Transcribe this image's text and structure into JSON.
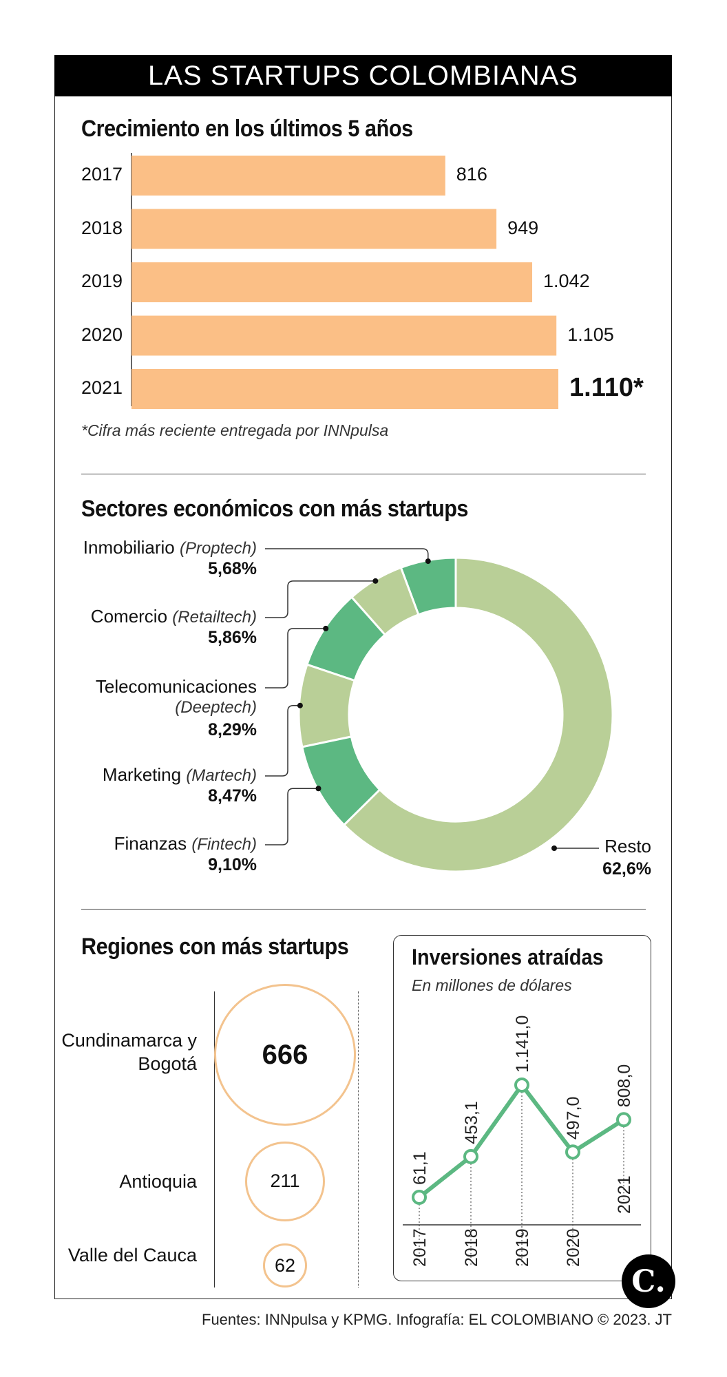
{
  "header": {
    "title": "LAS STARTUPS COLOMBIANAS"
  },
  "growth": {
    "title": "Crecimiento en los últimos 5 años",
    "note": "*Cifra más reciente entregada por INNpulsa"
  },
  "sectors": {
    "title": "Sectores económicos con más startups"
  },
  "regions": {
    "title": "Regiones con más startups"
  },
  "investments": {
    "title": "Inversiones atraídas",
    "subtitle": "En millones de dólares"
  },
  "footer": {
    "source": "Fuentes: INNpulsa y KPMG. Infografía: EL COLOMBIANO © 2023. JT",
    "logo": "C."
  },
  "colors": {
    "bar": "#fbbf86",
    "donut_dark": "#5cb882",
    "donut_light": "#b9cf97",
    "bubble": "#f3c38e",
    "line": "#5cb882"
  },
  "chart_data": [
    {
      "type": "bar",
      "orientation": "horizontal",
      "title": "Crecimiento en los últimos 5 años",
      "categories": [
        "2017",
        "2018",
        "2019",
        "2020",
        "2021"
      ],
      "values": [
        816,
        949,
        1042,
        1105,
        1110
      ],
      "value_labels": [
        "816",
        "949",
        "1.042",
        "1.105",
        "1.110*"
      ]
    },
    {
      "type": "pie",
      "variant": "donut",
      "title": "Sectores económicos con más startups",
      "slices": [
        {
          "name": "Inmobiliario",
          "tag": "(Proptech)",
          "value": 5.68,
          "label": "5,68%"
        },
        {
          "name": "Comercio",
          "tag": "(Retailtech)",
          "value": 5.86,
          "label": "5,86%"
        },
        {
          "name": "Telecomunicaciones",
          "tag": "(Deeptech)",
          "value": 8.29,
          "label": "8,29%"
        },
        {
          "name": "Marketing",
          "tag": "(Martech)",
          "value": 8.47,
          "label": "8,47%"
        },
        {
          "name": "Finanzas",
          "tag": "(Fintech)",
          "value": 9.1,
          "label": "9,10%"
        },
        {
          "name": "Resto",
          "tag": "",
          "value": 62.6,
          "label": "62,6%"
        }
      ]
    },
    {
      "type": "scatter",
      "variant": "bubble",
      "title": "Regiones con más startups",
      "items": [
        {
          "name": "Cundinamarca y Bogotá",
          "value": 666,
          "label": "666"
        },
        {
          "name": "Antioquia",
          "value": 211,
          "label": "211"
        },
        {
          "name": "Valle del Cauca",
          "value": 62,
          "label": "62"
        }
      ]
    },
    {
      "type": "line",
      "title": "Inversiones atraídas",
      "subtitle": "En millones de dólares",
      "x": [
        "2017",
        "2018",
        "2019",
        "2020",
        "2021"
      ],
      "values": [
        61.1,
        453.1,
        1141.0,
        497.0,
        808.0
      ],
      "value_labels": [
        "61,1",
        "453,1",
        "1.141,0",
        "497,0",
        "808,0"
      ]
    }
  ]
}
